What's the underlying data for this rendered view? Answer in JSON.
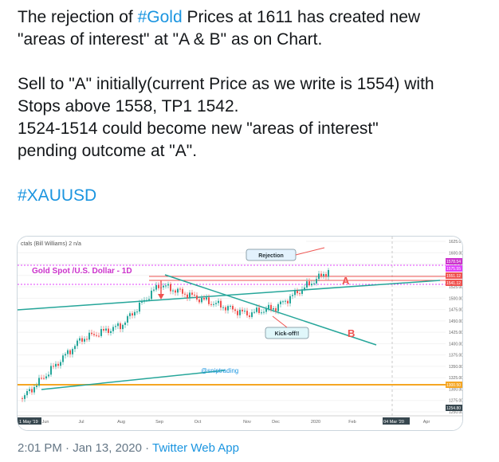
{
  "tweet": {
    "line1_pre": "The rejection of ",
    "line1_tag": "#Gold",
    "line1_post": " Prices at 1611 has created new",
    "line2": "\"areas of interest\" at \"A & B\" as on Chart.",
    "line3": "Sell to \"A\" initially(current Price as we write is 1554) with",
    "line4": "Stops above 1558, TP1 1542.",
    "line5": "1524-1514 could become new \"areas of interest\"",
    "line6": "pending outcome at \"A\".",
    "hashtag": "#XAUUSD"
  },
  "chart": {
    "indicator_label": "ctals (Bill Williams) 2  n/a",
    "title": "Gold Spot /U.S. Dollar - 1D",
    "annotation_rejection": "Rejection",
    "annotation_kickoff": "Kick-off!!",
    "label_a": "A",
    "label_b": "B",
    "watermark": "@sniptrading",
    "axis_tag_1": "1578.54",
    "axis_tag_2": "1575.55",
    "axis_tag_3": "1551.12",
    "axis_tag_4": "1541.12",
    "axis_tag_5": "1300.50",
    "axis_tag_6": "1254.80",
    "colors": {
      "bull": "#26a69a",
      "bear": "#ef5350",
      "accent": "#cc33cc",
      "support": "#f5a623"
    }
  },
  "chart_data": {
    "type": "line",
    "title": "Gold Spot /U.S. Dollar - 1D",
    "x_ticks": [
      "1 May '19",
      "Jun",
      "Jul",
      "Aug",
      "Sep",
      "Oct",
      "Nov",
      "Dec",
      "2020",
      "Feb",
      "04 Mar '20",
      "Apr"
    ],
    "y_ticks": [
      1625,
      1600,
      1575,
      1550,
      1525,
      1500,
      1475,
      1450,
      1425,
      1400,
      1375,
      1350,
      1325,
      1300,
      1275,
      1250
    ],
    "ylim": [
      1250,
      1625
    ],
    "series": [
      {
        "name": "",
        "x": [
          "May",
          "Jun",
          "Jul",
          "Aug",
          "Sep",
          "Oct",
          "Nov",
          "Dec",
          "Jan"
        ],
        "values": [
          1280,
          1330,
          1410,
          1440,
          1530,
          1500,
          1465,
          1480,
          1560
        ]
      }
    ]
  },
  "footer": {
    "time": "2:01 PM · Jan 13, 2020 · ",
    "app": "Twitter Web App"
  }
}
